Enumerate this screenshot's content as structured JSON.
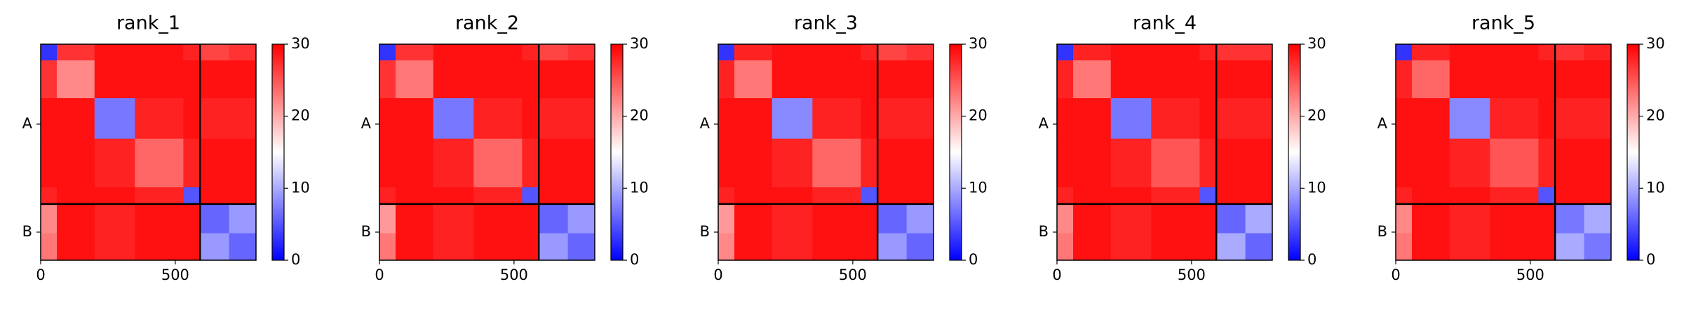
{
  "chart_data": [
    {
      "type": "heatmap",
      "title": "rank_1",
      "x_edges": [
        0,
        60,
        200,
        350,
        530,
        590,
        700,
        800
      ],
      "z": [
        [
          3,
          27,
          29,
          29,
          28,
          26,
          27
        ],
        [
          27,
          22,
          29,
          29,
          29,
          29,
          29
        ],
        [
          29,
          29,
          7,
          28,
          29,
          28,
          28
        ],
        [
          29,
          29,
          28,
          24,
          28,
          29,
          29
        ],
        [
          28,
          29,
          29,
          28,
          5,
          29,
          29
        ],
        [
          22,
          29,
          28,
          29,
          29,
          6,
          9
        ],
        [
          23,
          29,
          28,
          29,
          29,
          9,
          6
        ]
      ],
      "xlim": [
        0,
        800
      ],
      "xticks": [
        0,
        500
      ],
      "chains": [
        "A",
        "B"
      ],
      "chain_breaks": [
        592
      ],
      "colormap": [
        "#0000ff",
        "#ffffff",
        "#ff0000"
      ],
      "clim": [
        0,
        30
      ],
      "cticks": [
        0,
        10,
        20,
        30
      ]
    },
    {
      "type": "heatmap",
      "title": "rank_2",
      "x_edges": [
        0,
        60,
        200,
        350,
        530,
        590,
        700,
        800
      ],
      "z": [
        [
          3,
          27,
          29,
          29,
          28,
          26,
          27
        ],
        [
          27,
          23,
          29,
          29,
          29,
          29,
          29
        ],
        [
          29,
          29,
          7,
          28,
          29,
          28,
          28
        ],
        [
          29,
          29,
          28,
          24,
          28,
          29,
          29
        ],
        [
          28,
          29,
          29,
          28,
          5,
          29,
          29
        ],
        [
          21,
          29,
          28,
          29,
          29,
          6,
          9
        ],
        [
          23,
          29,
          28,
          29,
          29,
          9,
          6
        ]
      ],
      "xlim": [
        0,
        800
      ],
      "xticks": [
        0,
        500
      ],
      "chains": [
        "A",
        "B"
      ],
      "chain_breaks": [
        592
      ],
      "colormap": [
        "#0000ff",
        "#ffffff",
        "#ff0000"
      ],
      "clim": [
        0,
        30
      ],
      "cticks": [
        0,
        10,
        20,
        30
      ]
    },
    {
      "type": "heatmap",
      "title": "rank_3",
      "x_edges": [
        0,
        60,
        200,
        350,
        530,
        590,
        700,
        800
      ],
      "z": [
        [
          3,
          28,
          29,
          29,
          28,
          26,
          27
        ],
        [
          28,
          23,
          29,
          29,
          29,
          29,
          29
        ],
        [
          29,
          29,
          8,
          28,
          29,
          28,
          28
        ],
        [
          29,
          29,
          28,
          24,
          28,
          29,
          29
        ],
        [
          28,
          29,
          29,
          28,
          5,
          29,
          29
        ],
        [
          21,
          29,
          28,
          29,
          29,
          6,
          9
        ],
        [
          22,
          29,
          28,
          29,
          29,
          9,
          6
        ]
      ],
      "xlim": [
        0,
        800
      ],
      "xticks": [
        0,
        500
      ],
      "chains": [
        "A",
        "B"
      ],
      "chain_breaks": [
        592
      ],
      "colormap": [
        "#0000ff",
        "#ffffff",
        "#ff0000"
      ],
      "clim": [
        0,
        30
      ],
      "cticks": [
        0,
        10,
        20,
        30
      ]
    },
    {
      "type": "heatmap",
      "title": "rank_4",
      "x_edges": [
        0,
        60,
        200,
        350,
        530,
        590,
        700,
        800
      ],
      "z": [
        [
          3,
          28,
          29,
          29,
          28,
          27,
          27
        ],
        [
          28,
          23,
          29,
          29,
          29,
          29,
          29
        ],
        [
          29,
          29,
          7,
          28,
          29,
          28,
          28
        ],
        [
          29,
          29,
          28,
          25,
          28,
          29,
          29
        ],
        [
          28,
          29,
          29,
          28,
          5,
          29,
          29
        ],
        [
          22,
          29,
          28,
          29,
          29,
          6,
          10
        ],
        [
          23,
          29,
          28,
          29,
          29,
          10,
          6
        ]
      ],
      "xlim": [
        0,
        800
      ],
      "xticks": [
        0,
        500
      ],
      "chains": [
        "A",
        "B"
      ],
      "chain_breaks": [
        592
      ],
      "colormap": [
        "#0000ff",
        "#ffffff",
        "#ff0000"
      ],
      "clim": [
        0,
        30
      ],
      "cticks": [
        0,
        10,
        20,
        30
      ]
    },
    {
      "type": "heatmap",
      "title": "rank_5",
      "x_edges": [
        0,
        60,
        200,
        350,
        530,
        590,
        700,
        800
      ],
      "z": [
        [
          3,
          28,
          29,
          29,
          28,
          27,
          28
        ],
        [
          28,
          24,
          29,
          29,
          29,
          29,
          29
        ],
        [
          29,
          29,
          8,
          28,
          29,
          28,
          28
        ],
        [
          29,
          29,
          28,
          25,
          28,
          29,
          29
        ],
        [
          28,
          29,
          29,
          28,
          5,
          29,
          29
        ],
        [
          22,
          29,
          28,
          29,
          29,
          7,
          10
        ],
        [
          23,
          29,
          28,
          29,
          29,
          10,
          7
        ]
      ],
      "xlim": [
        0,
        800
      ],
      "xticks": [
        0,
        500
      ],
      "chains": [
        "A",
        "B"
      ],
      "chain_breaks": [
        592
      ],
      "colormap": [
        "#0000ff",
        "#ffffff",
        "#ff0000"
      ],
      "clim": [
        0,
        30
      ],
      "cticks": [
        0,
        10,
        20,
        30
      ]
    }
  ]
}
